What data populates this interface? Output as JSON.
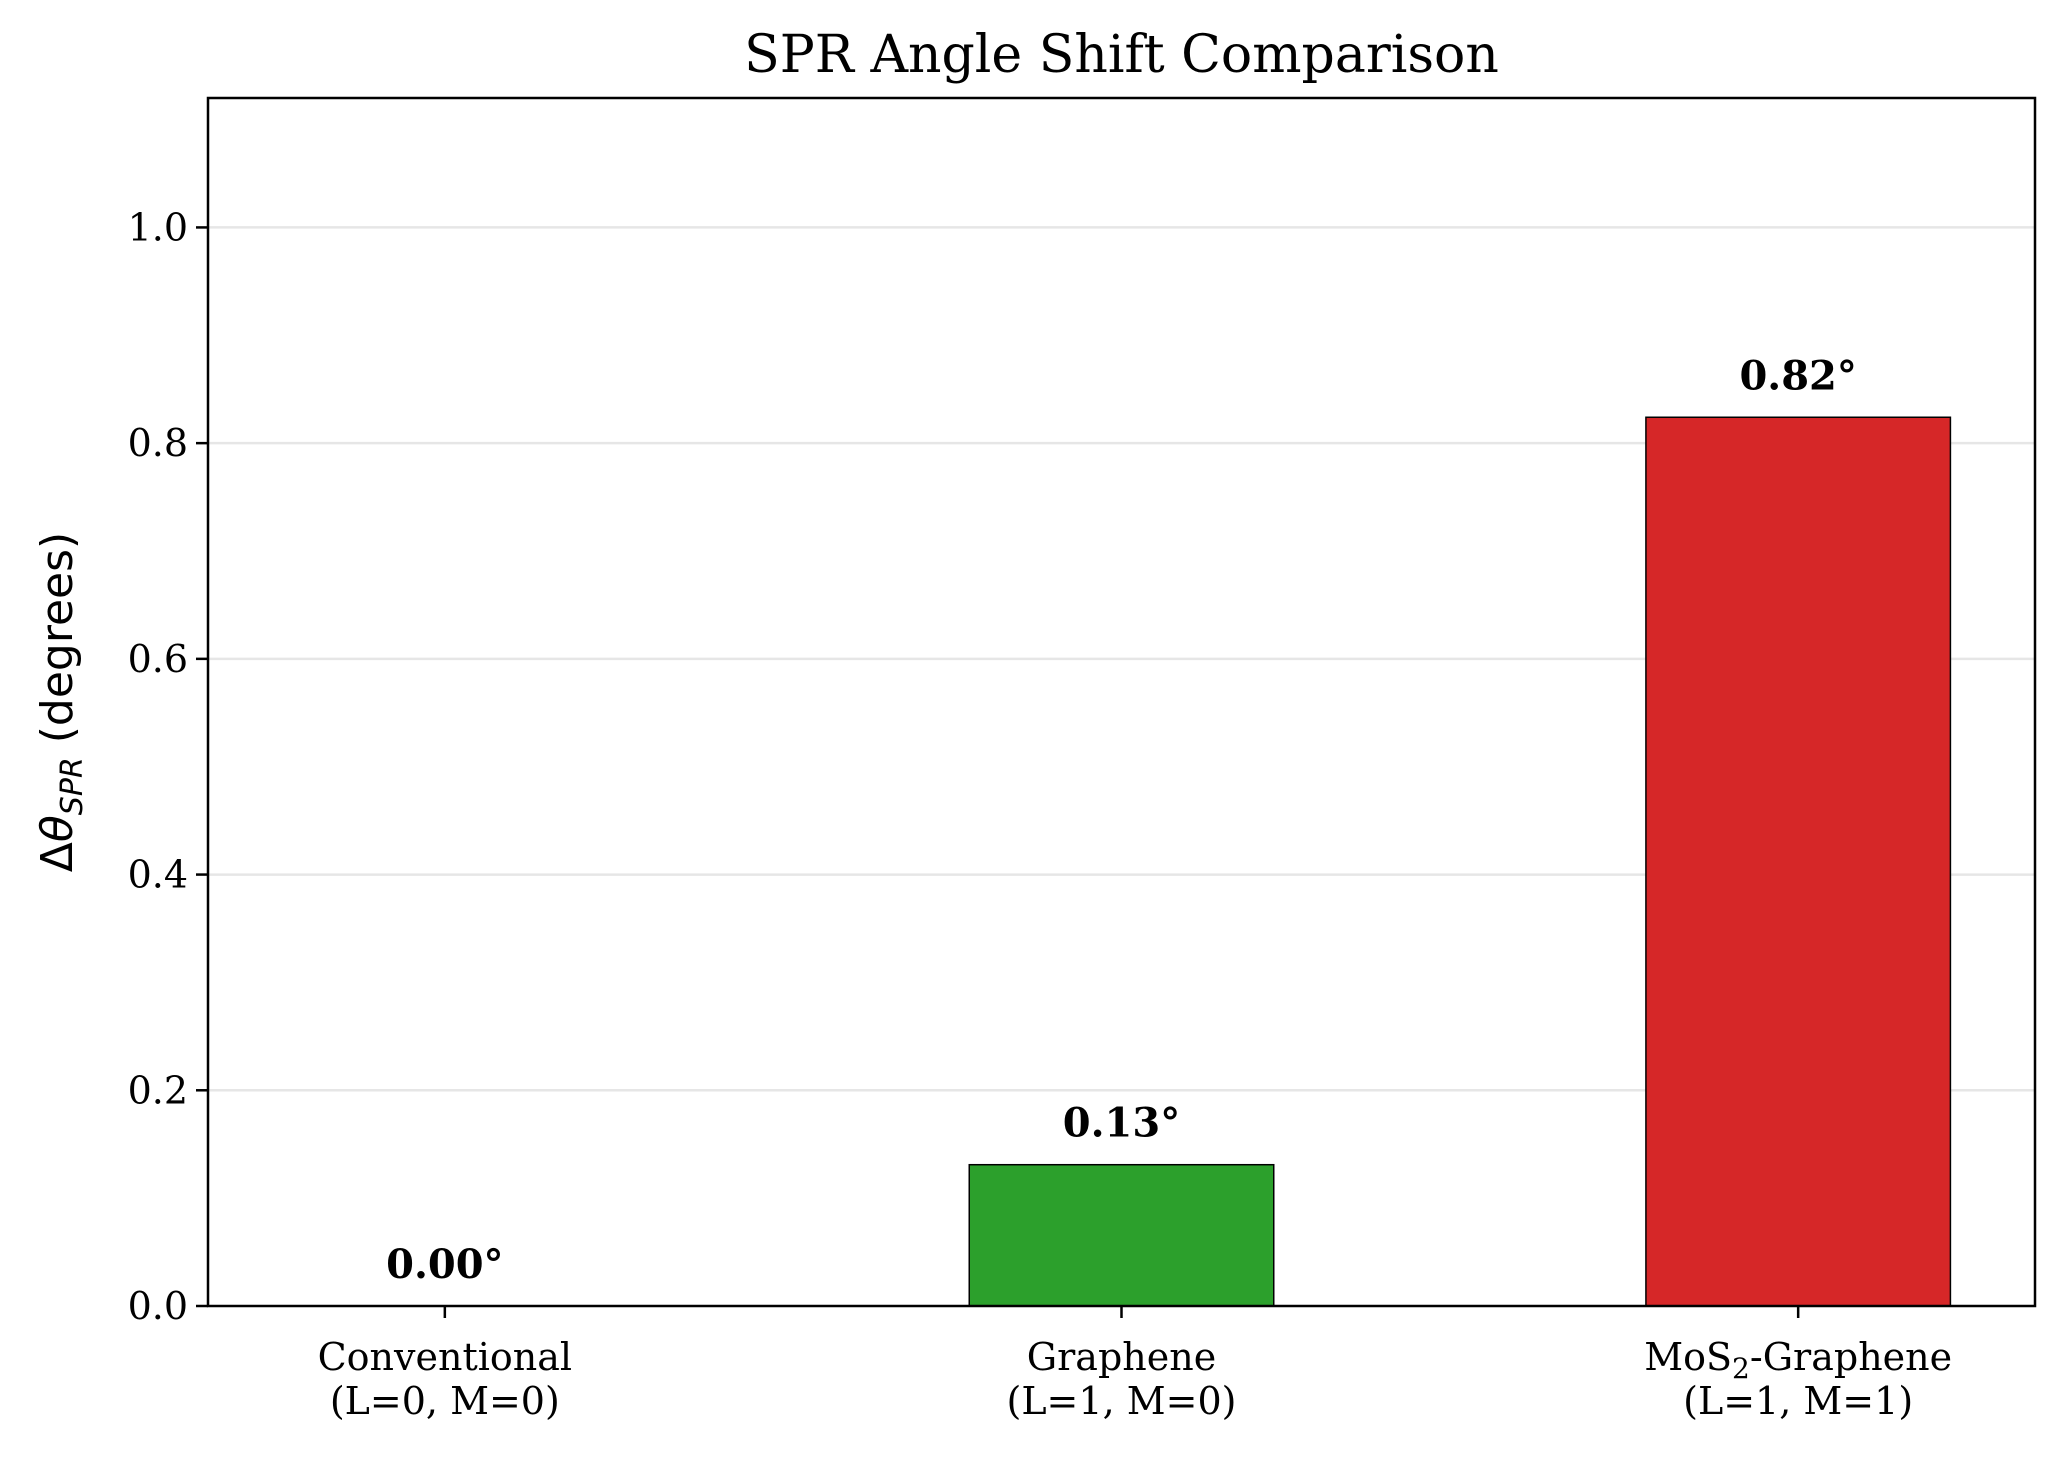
{
  "chart_data": {
    "type": "bar",
    "title": "SPR Angle Shift Comparison",
    "ylabel": {
      "delta": "Δ",
      "theta": "θ",
      "subscript": "SPR",
      "units": " (degrees)"
    },
    "xlabel": "",
    "categories": [
      {
        "line1": "Conventional",
        "line2": "(L=0, M=0)"
      },
      {
        "line1": "Graphene",
        "line2": "(L=1, M=0)"
      },
      {
        "line1_prefix": "MoS",
        "line1_sub": "2",
        "line1_suffix": "-Graphene",
        "line2": "(L=1, M=1)"
      }
    ],
    "values": [
      0.0,
      0.131,
      0.824
    ],
    "data_labels": [
      "0.00°",
      "0.13°",
      "0.82°"
    ],
    "colors": [
      "#1f77b4",
      "#2ca02c",
      "#d62728"
    ],
    "ylim": [
      0,
      1.12
    ],
    "yticks": [
      0.0,
      0.2,
      0.4,
      0.6,
      0.8,
      1.0
    ],
    "ytick_labels": [
      "0.0",
      "0.2",
      "0.4",
      "0.6",
      "0.8",
      "1.0"
    ],
    "grid": "horizontal",
    "grid_color": "#e6e6e6"
  }
}
